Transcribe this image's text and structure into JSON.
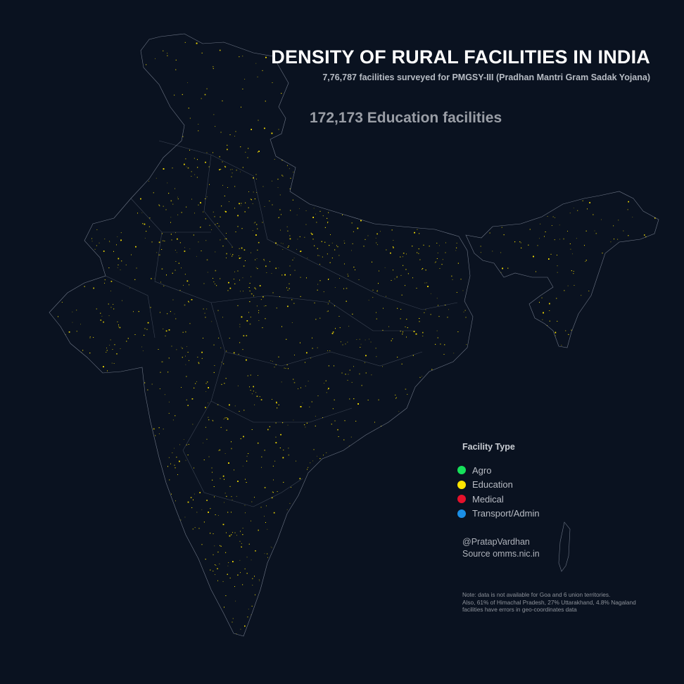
{
  "header": {
    "title": "DENSITY OF RURAL FACILITIES IN INDIA",
    "subtitle": "7,76,787 facilities surveyed for PMGSY-III (Pradhan Mantri Gram Sadak Yojana)"
  },
  "highlight": {
    "count_text": "172,173 Education facilities"
  },
  "legend": {
    "title": "Facility Type",
    "items": [
      {
        "label": "Agro",
        "color": "#16e05a"
      },
      {
        "label": "Education",
        "color": "#ffe500"
      },
      {
        "label": "Medical",
        "color": "#e5112b"
      },
      {
        "label": "Transport/Admin",
        "color": "#1b8fe6"
      }
    ]
  },
  "credit": {
    "author": "@PratapVardhan",
    "source": "Source omms.nic.in"
  },
  "note": {
    "line1": "Note: data is not available for Goa and 6 union territories.",
    "line2": "Also, 61% of Himachal Pradesh, 27% Uttarakhand, 4.8% Nagaland",
    "line3": "facilities have errors in geo-coordinates data"
  },
  "map": {
    "background": "#0a1220",
    "border_color": "#9aa3b4",
    "point_color": "#ffe500",
    "highlighted_category": "Education"
  }
}
